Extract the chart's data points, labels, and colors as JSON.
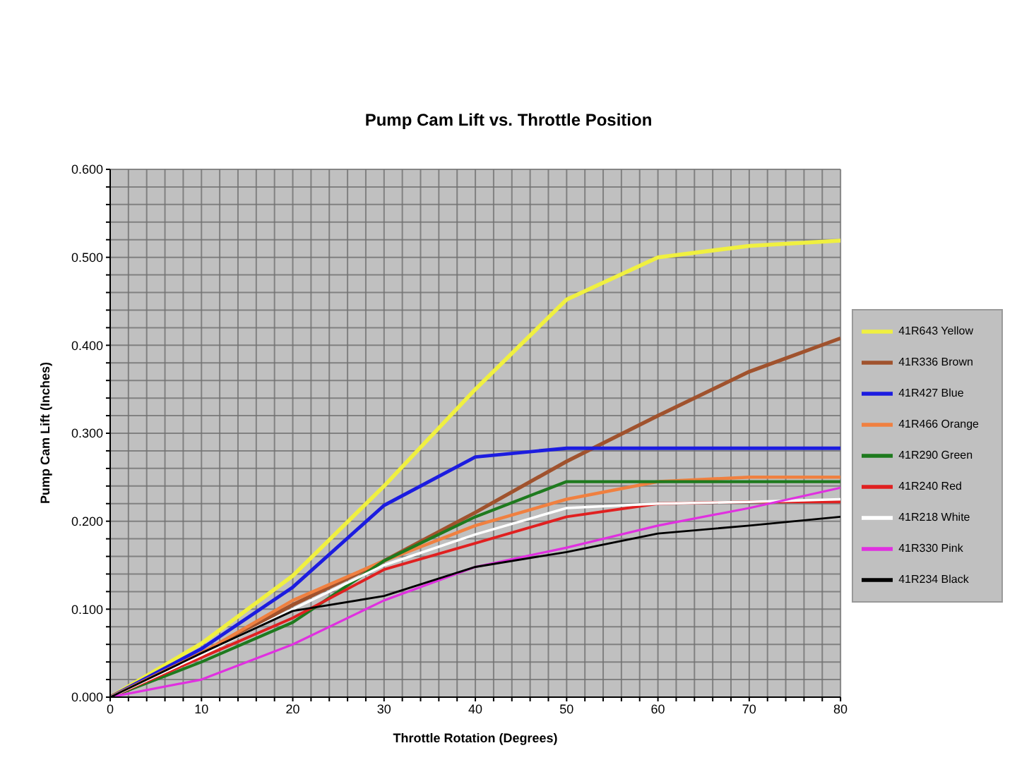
{
  "chart_data": {
    "type": "line",
    "title": "Pump Cam Lift vs. Throttle Position",
    "xlabel": "Throttle Rotation (Degrees)",
    "ylabel": "Pump Cam Lift (Inches)",
    "x": [
      0,
      10,
      20,
      30,
      40,
      50,
      60,
      70,
      80
    ],
    "xlim": [
      0,
      80
    ],
    "xticks": [
      0,
      {
        "value": 2,
        "label": null
      },
      {
        "value": 4,
        "label": null
      },
      {
        "value": 6,
        "label": null
      },
      {
        "value": 8,
        "label": null
      },
      10,
      {
        "value": 12,
        "label": null
      },
      {
        "value": 14,
        "label": null
      },
      {
        "value": 16,
        "label": null
      },
      {
        "value": 18,
        "label": null
      },
      20,
      {
        "value": 22,
        "label": null
      },
      {
        "value": 24,
        "label": null
      },
      {
        "value": 26,
        "label": null
      },
      {
        "value": 28,
        "label": null
      },
      30,
      {
        "value": 32,
        "label": null
      },
      {
        "value": 34,
        "label": null
      },
      {
        "value": 36,
        "label": null
      },
      {
        "value": 38,
        "label": null
      },
      40,
      {
        "value": 42,
        "label": null
      },
      {
        "value": 44,
        "label": null
      },
      {
        "value": 46,
        "label": null
      },
      {
        "value": 48,
        "label": null
      },
      50,
      {
        "value": 52,
        "label": null
      },
      {
        "value": 54,
        "label": null
      },
      {
        "value": 56,
        "label": null
      },
      {
        "value": 58,
        "label": null
      },
      60,
      {
        "value": 62,
        "label": null
      },
      {
        "value": 64,
        "label": null
      },
      {
        "value": 66,
        "label": null
      },
      {
        "value": 68,
        "label": null
      },
      70,
      {
        "value": 72,
        "label": null
      },
      {
        "value": 74,
        "label": null
      },
      {
        "value": 76,
        "label": null
      },
      {
        "value": 78,
        "label": null
      },
      80
    ],
    "ylim": [
      0,
      0.6
    ],
    "yticks": [
      {
        "value": 0,
        "label": "0.000"
      },
      {
        "value": 0.02,
        "label": null
      },
      {
        "value": 0.04,
        "label": null
      },
      {
        "value": 0.06,
        "label": null
      },
      {
        "value": 0.08,
        "label": null
      },
      {
        "value": 0.1,
        "label": "0.100"
      },
      {
        "value": 0.12,
        "label": null
      },
      {
        "value": 0.14,
        "label": null
      },
      {
        "value": 0.16,
        "label": null
      },
      {
        "value": 0.18,
        "label": null
      },
      {
        "value": 0.2,
        "label": "0.200"
      },
      {
        "value": 0.22,
        "label": null
      },
      {
        "value": 0.24,
        "label": null
      },
      {
        "value": 0.26,
        "label": null
      },
      {
        "value": 0.28,
        "label": null
      },
      {
        "value": 0.3,
        "label": "0.300"
      },
      {
        "value": 0.32,
        "label": null
      },
      {
        "value": 0.34,
        "label": null
      },
      {
        "value": 0.36,
        "label": null
      },
      {
        "value": 0.38,
        "label": null
      },
      {
        "value": 0.4,
        "label": "0.400"
      },
      {
        "value": 0.42,
        "label": null
      },
      {
        "value": 0.44,
        "label": null
      },
      {
        "value": 0.46,
        "label": null
      },
      {
        "value": 0.48,
        "label": null
      },
      {
        "value": 0.5,
        "label": "0.500"
      },
      {
        "value": 0.52,
        "label": null
      },
      {
        "value": 0.54,
        "label": null
      },
      {
        "value": 0.56,
        "label": null
      },
      {
        "value": 0.58,
        "label": null
      },
      {
        "value": 0.6,
        "label": "0.600"
      }
    ],
    "grid": true,
    "legend": "right",
    "marker": "none",
    "line_style": "solid",
    "series": [
      {
        "name": "41R643 Yellow",
        "color": "#f0f040",
        "values": [
          0,
          0.061,
          0.138,
          0.24,
          0.35,
          0.452,
          0.5,
          0.513,
          0.519
        ]
      },
      {
        "name": "41R336 Brown",
        "color": "#a0522d",
        "values": [
          0,
          0.05,
          0.105,
          0.155,
          0.21,
          0.268,
          0.32,
          0.37,
          0.408
        ]
      },
      {
        "name": "41R427 Blue",
        "color": "#1c1ce0",
        "values": [
          0,
          0.055,
          0.125,
          0.218,
          0.273,
          0.283,
          0.283,
          0.283,
          0.283
        ]
      },
      {
        "name": "41R466 Orange",
        "color": "#f08040",
        "values": [
          0,
          0.05,
          0.11,
          0.155,
          0.195,
          0.225,
          0.245,
          0.25,
          0.25
        ]
      },
      {
        "name": "41R290 Green",
        "color": "#1e7a1e",
        "values": [
          0,
          0.04,
          0.085,
          0.155,
          0.205,
          0.245,
          0.245,
          0.245,
          0.245
        ]
      },
      {
        "name": "41R240 Red",
        "color": "#e02020",
        "values": [
          0,
          0.045,
          0.09,
          0.145,
          0.175,
          0.205,
          0.22,
          0.222,
          0.222
        ]
      },
      {
        "name": "41R218 White",
        "color": "#ffffff",
        "values": [
          0,
          0.048,
          0.1,
          0.15,
          0.185,
          0.215,
          0.22,
          0.222,
          0.225
        ]
      },
      {
        "name": "41R330 Pink",
        "color": "#e030e0",
        "values": [
          0,
          0.02,
          0.06,
          0.11,
          0.148,
          0.17,
          0.195,
          0.215,
          0.238
        ]
      },
      {
        "name": "41R234 Black",
        "color": "#000000",
        "values": [
          0,
          0.05,
          0.098,
          0.115,
          0.148,
          0.165,
          0.186,
          0.195,
          0.205
        ]
      }
    ]
  }
}
